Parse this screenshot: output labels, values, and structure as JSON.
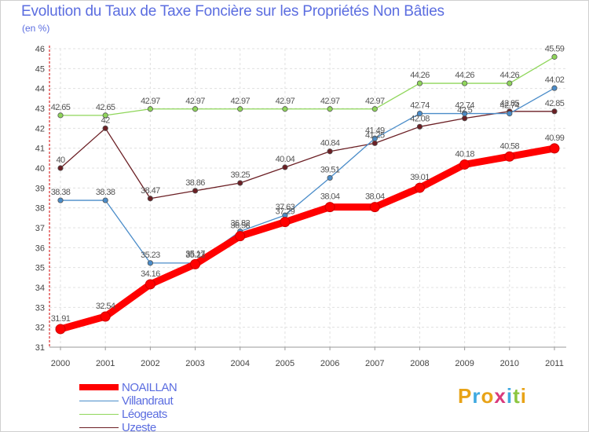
{
  "title": "Evolution du Taux de Taxe Foncière sur les Propriétés Non Bâties",
  "subtitle": "(en %)",
  "logo": {
    "letters": [
      "P",
      "r",
      "o",
      "x",
      "i",
      "t",
      "i"
    ],
    "colors": [
      "#e8a317",
      "#3fa9e0",
      "#e8a317",
      "#d93a7c",
      "#3fa9e0",
      "#8cc63f",
      "#e8a317"
    ]
  },
  "chart_data": {
    "type": "line",
    "title": "Evolution du Taux de Taxe Foncière sur les Propriétés Non Bâties",
    "ylabel": "(en %)",
    "xlabel": "",
    "categories": [
      "2000",
      "2001",
      "2002",
      "2003",
      "2004",
      "2005",
      "2006",
      "2007",
      "2008",
      "2009",
      "2010",
      "2011"
    ],
    "ylim": [
      31,
      46
    ],
    "yticks": [
      "31",
      "32",
      "33",
      "34",
      "35",
      "36",
      "37",
      "38",
      "39",
      "40",
      "41",
      "42",
      "43",
      "44",
      "45",
      "46"
    ],
    "series": [
      {
        "name": "Léogeats",
        "color": "#8fd65a",
        "values": [
          42.65,
          42.65,
          42.97,
          42.97,
          42.97,
          42.97,
          42.97,
          42.97,
          44.26,
          44.26,
          44.26,
          45.59
        ],
        "labels": [
          "42.65",
          "42.65",
          "42.97",
          "42.97",
          "42.97",
          "42.97",
          "42.97",
          "42.97",
          "44.26",
          "44.26",
          "44.26",
          "45.59"
        ]
      },
      {
        "name": "Uzeste",
        "color": "#6b1f24",
        "values": [
          40,
          42,
          38.47,
          38.86,
          39.25,
          40.04,
          40.84,
          41.25,
          42.08,
          42.5,
          42.85,
          42.85
        ],
        "labels": [
          "40",
          "42",
          "38.47",
          "38.86",
          "39.25",
          "40.04",
          "40.84",
          "41.25",
          "42.08",
          "42.5",
          "42.85",
          "42.85"
        ]
      },
      {
        "name": "Villandraut",
        "color": "#4a8cc9",
        "values": [
          38.38,
          38.38,
          35.23,
          35.23,
          36.82,
          37.63,
          39.51,
          41.49,
          42.74,
          42.74,
          42.74,
          44.02
        ],
        "labels": [
          "38.38",
          "38.38",
          "35.23",
          "35.23",
          "36.82",
          "37.63",
          "39.51",
          "41.49",
          "42.74",
          "42.74",
          "42.74",
          "44.02"
        ]
      },
      {
        "name": "NOAILLAN",
        "color": "#ff0000",
        "values": [
          31.91,
          32.54,
          34.16,
          35.17,
          36.58,
          37.29,
          38.04,
          38.04,
          39.01,
          40.18,
          40.58,
          40.99
        ],
        "labels": [
          "31.91",
          "32.54",
          "34.16",
          "35.17",
          "36.58",
          "37.29",
          "38.04",
          "38.04",
          "39.01",
          "40.18",
          "40.58",
          "40.99"
        ]
      }
    ],
    "legend": [
      "NOAILLAN",
      "Villandraut",
      "Léogeats",
      "Uzeste"
    ],
    "grid": true
  }
}
